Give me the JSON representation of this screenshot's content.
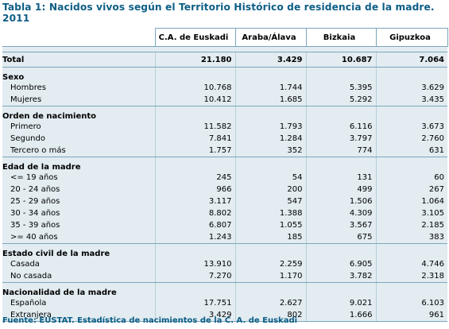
{
  "title": "Tabla 1: Nacidos vivos según el Territorio Histórico de residencia de la madre. 2011",
  "columns": [
    "C.A. de Euskadi",
    "Araba/Álava",
    "Bizkaia",
    "Gipuzkoa"
  ],
  "total": {
    "label": "Total",
    "values": [
      "21.180",
      "3.429",
      "10.687",
      "7.064"
    ]
  },
  "groups": [
    {
      "label": "Sexo",
      "rows": [
        {
          "label": "Hombres",
          "values": [
            "10.768",
            "1.744",
            "5.395",
            "3.629"
          ]
        },
        {
          "label": "Mujeres",
          "values": [
            "10.412",
            "1.685",
            "5.292",
            "3.435"
          ]
        }
      ]
    },
    {
      "label": "Orden de nacimiento",
      "rows": [
        {
          "label": "Primero",
          "values": [
            "11.582",
            "1.793",
            "6.116",
            "3.673"
          ]
        },
        {
          "label": "Segundo",
          "values": [
            "7.841",
            "1.284",
            "3.797",
            "2.760"
          ]
        },
        {
          "label": "Tercero o más",
          "values": [
            "1.757",
            "352",
            "774",
            "631"
          ]
        }
      ]
    },
    {
      "label": "Edad de la madre",
      "rows": [
        {
          "label": "<= 19 años",
          "values": [
            "245",
            "54",
            "131",
            "60"
          ]
        },
        {
          "label": "20 - 24 años",
          "values": [
            "966",
            "200",
            "499",
            "267"
          ]
        },
        {
          "label": "25 - 29 años",
          "values": [
            "3.117",
            "547",
            "1.506",
            "1.064"
          ]
        },
        {
          "label": "30 - 34 años",
          "values": [
            "8.802",
            "1.388",
            "4.309",
            "3.105"
          ]
        },
        {
          "label": "35 - 39 años",
          "values": [
            "6.807",
            "1.055",
            "3.567",
            "2.185"
          ]
        },
        {
          "label": ">= 40 años",
          "values": [
            "1.243",
            "185",
            "675",
            "383"
          ]
        }
      ]
    },
    {
      "label": "Estado civil de la madre",
      "rows": [
        {
          "label": "Casada",
          "values": [
            "13.910",
            "2.259",
            "6.905",
            "4.746"
          ]
        },
        {
          "label": "No casada",
          "values": [
            "7.270",
            "1.170",
            "3.782",
            "2.318"
          ]
        }
      ]
    },
    {
      "label": "Nacionalidad de la madre",
      "rows": [
        {
          "label": "Española",
          "values": [
            "17.751",
            "2.627",
            "9.021",
            "6.103"
          ]
        },
        {
          "label": "Extranjera",
          "values": [
            "3.429",
            "802",
            "1.666",
            "961"
          ]
        }
      ]
    }
  ],
  "source": "Fuente: EUSTAT. Estadística de nacimientos de la C. A. de Euskadi",
  "colors": {
    "title": "#0e5e86",
    "row_bg": "#e2ecf1",
    "border": "#7aa7bd"
  }
}
